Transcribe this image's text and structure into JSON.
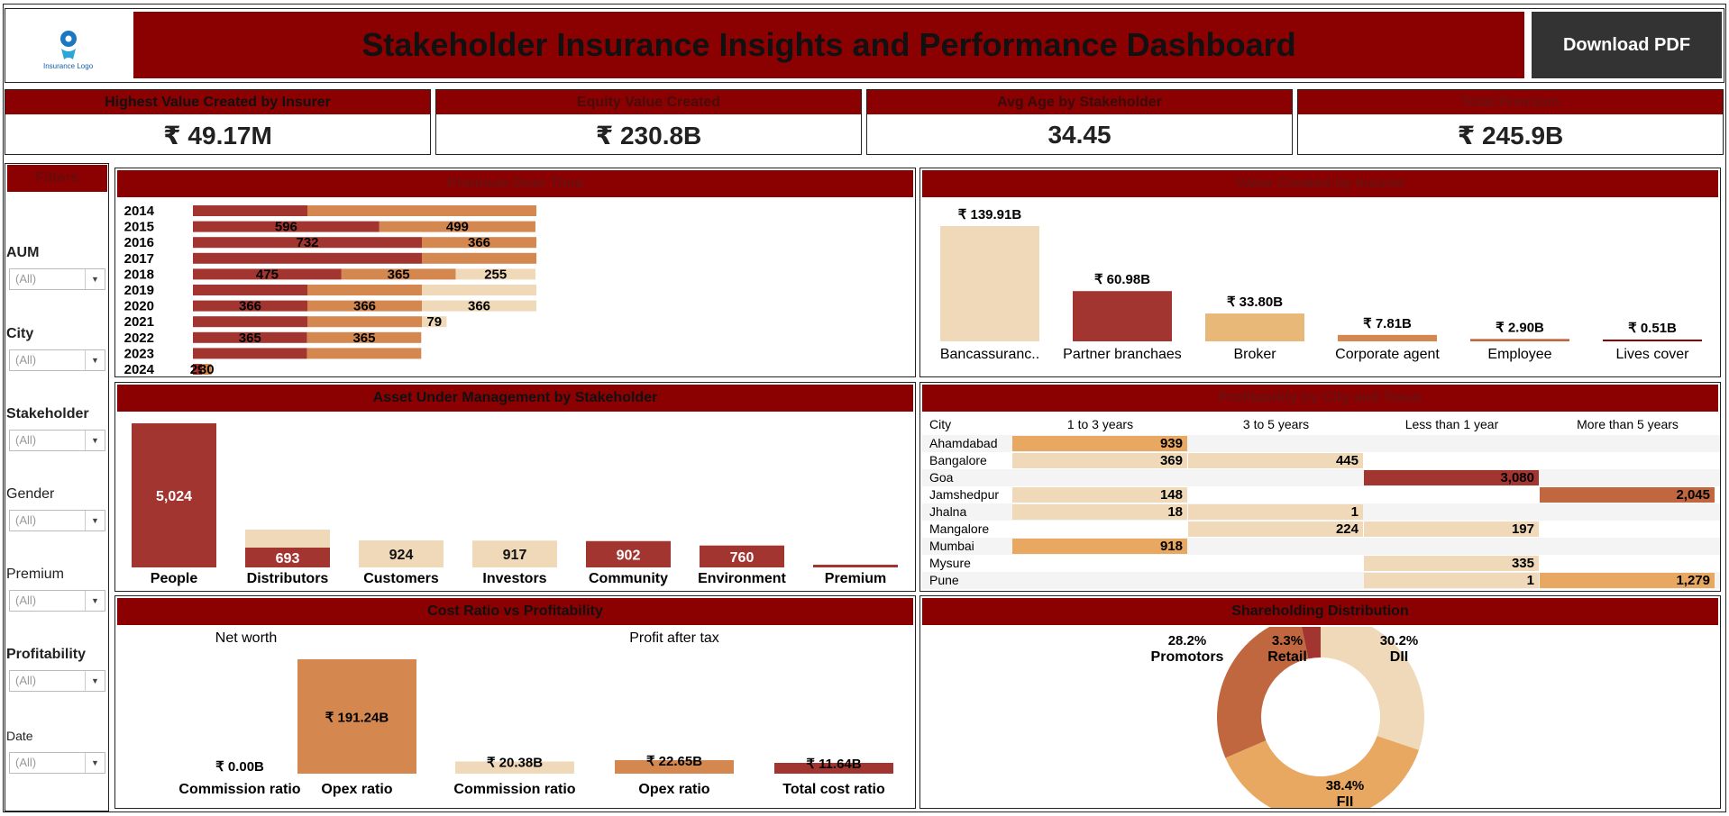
{
  "header": {
    "logo_text": "Insurance Logo",
    "title": "Stakeholder Insurance Insights and Performance Dashboard",
    "download_label": "Download PDF"
  },
  "kpis": [
    {
      "label": "Highest Value Created by Insurer",
      "value": "₹ 49.17M"
    },
    {
      "label": "Equity Value Created",
      "value": "₹ 230.8B"
    },
    {
      "label": "Avg Age by Stakeholder",
      "value": "34.45"
    },
    {
      "label": "Total Premium",
      "value": "₹ 245.9B"
    }
  ],
  "filters": {
    "title": "Filters",
    "items": [
      {
        "label": "AUM",
        "value": "(All)"
      },
      {
        "label": "City",
        "value": "(All)"
      },
      {
        "label": "Stakeholder",
        "value": "(All)"
      },
      {
        "label": "Gender",
        "value": "(All)"
      },
      {
        "label": "Premium",
        "value": "(All)"
      },
      {
        "label": "Profitability",
        "value": "(All)"
      },
      {
        "label": "Date",
        "value": "(All)"
      }
    ]
  },
  "colors": {
    "header_red": "#8b0000",
    "dark_red": "#a23530",
    "orange": "#d4874f",
    "light_orange": "#e8a862",
    "beige": "#efd9b8",
    "terracotta": "#c0673f"
  },
  "chart_data": [
    {
      "id": "premium_over_time",
      "type": "bar",
      "orientation": "horizontal-stacked",
      "title": "Premium Over Time",
      "categories": [
        "2014",
        "2015",
        "2016",
        "2017",
        "2018",
        "2019",
        "2020",
        "2021",
        "2022",
        "2023",
        "2024"
      ],
      "series": [
        {
          "color": "#a23530",
          "values": [
            366,
            596,
            732,
            732,
            475,
            366,
            366,
            366,
            365,
            365,
            29
          ]
        },
        {
          "color": "#d4874f",
          "values": [
            732,
            499,
            366,
            366,
            365,
            366,
            366,
            366,
            365,
            365,
            30
          ]
        },
        {
          "color": "#efd9b8",
          "values": [
            0,
            0,
            0,
            0,
            255,
            366,
            366,
            79,
            0,
            0,
            0
          ]
        }
      ],
      "labels": [
        [
          "",
          "",
          ""
        ],
        [
          "596",
          "499",
          ""
        ],
        [
          "732",
          "366",
          ""
        ],
        [
          "",
          "",
          ""
        ],
        [
          "475",
          "365",
          "255"
        ],
        [
          "",
          "",
          ""
        ],
        [
          "366",
          "366",
          "366"
        ],
        [
          "",
          "",
          "79"
        ],
        [
          "365",
          "365",
          ""
        ],
        [
          "",
          "",
          ""
        ],
        [
          "29",
          "30",
          ""
        ]
      ]
    },
    {
      "id": "value_created_by_insurer",
      "type": "bar",
      "title": "Value Created by Insurer",
      "categories": [
        "Bancassuranc..",
        "Partner branchaes",
        "Broker",
        "Corporate agent",
        "Employee",
        "Lives cover"
      ],
      "values": [
        139.91,
        60.98,
        33.8,
        7.81,
        2.9,
        0.51
      ],
      "value_labels": [
        "₹ 139.91B",
        "₹ 60.98B",
        "₹ 33.80B",
        "₹ 7.81B",
        "₹ 2.90B",
        "₹ 0.51B"
      ],
      "colors": [
        "#efd9b8",
        "#a23530",
        "#e8b878",
        "#d4874f",
        "#c0673f",
        "#8b0000"
      ]
    },
    {
      "id": "aum_by_stakeholder",
      "type": "bar",
      "title": "Asset Under Management by Stakeholder",
      "categories": [
        "People",
        "Distributors",
        "Customers",
        "Investors",
        "Community",
        "Environment",
        "Premium"
      ],
      "values": [
        5024,
        693,
        924,
        917,
        902,
        760,
        0
      ],
      "extra_segment": [
        0,
        600,
        0,
        0,
        0,
        0,
        0
      ],
      "value_labels": [
        "5,024",
        "693",
        "924",
        "917",
        "902",
        "760",
        ""
      ],
      "colors": [
        "#a23530",
        "#a23530",
        "#efd9b8",
        "#efd9b8",
        "#a23530",
        "#a23530",
        "#a23530"
      ]
    },
    {
      "id": "profitability_by_city_tenure",
      "type": "table",
      "title": "Profitability by City and Tenur",
      "columns": [
        "City",
        "1 to 3 years",
        "3 to 5 years",
        "Less than 1 year",
        "More than 5 years"
      ],
      "rows": [
        {
          "city": "Ahamdabad",
          "cells": [
            {
              "v": "939",
              "c": "#e8a862"
            },
            null,
            null,
            null
          ]
        },
        {
          "city": "Bangalore",
          "cells": [
            {
              "v": "369",
              "c": "#efd9b8"
            },
            {
              "v": "445",
              "c": "#efd9b8"
            },
            null,
            null
          ]
        },
        {
          "city": "Goa",
          "cells": [
            null,
            null,
            {
              "v": "3,080",
              "c": "#a23530"
            },
            null
          ]
        },
        {
          "city": "Jamshedpur",
          "cells": [
            {
              "v": "148",
              "c": "#efd9b8"
            },
            null,
            null,
            {
              "v": "2,045",
              "c": "#c0673f"
            }
          ]
        },
        {
          "city": "Jhalna",
          "cells": [
            {
              "v": "18",
              "c": "#efd9b8"
            },
            {
              "v": "1",
              "c": "#efd9b8"
            },
            null,
            null
          ]
        },
        {
          "city": "Mangalore",
          "cells": [
            null,
            {
              "v": "224",
              "c": "#efd9b8"
            },
            {
              "v": "197",
              "c": "#efd9b8"
            },
            null
          ]
        },
        {
          "city": "Mumbai",
          "cells": [
            {
              "v": "918",
              "c": "#e8a862"
            },
            null,
            null,
            null
          ]
        },
        {
          "city": "Mysure",
          "cells": [
            null,
            null,
            {
              "v": "335",
              "c": "#efd9b8"
            },
            null
          ]
        },
        {
          "city": "Pune",
          "cells": [
            null,
            null,
            {
              "v": "1",
              "c": "#efd9b8"
            },
            {
              "v": "1,279",
              "c": "#e8a862"
            }
          ]
        }
      ]
    },
    {
      "id": "cost_ratio_vs_profitability",
      "type": "bar",
      "title": "Cost Ratio vs Profitability",
      "groups": [
        {
          "name": "Net worth",
          "categories": [
            "Commission ratio",
            "Opex ratio"
          ],
          "values": [
            0.0,
            191.24
          ],
          "value_labels": [
            "₹ 0.00B",
            "₹ 191.24B"
          ],
          "colors": [
            "#a23530",
            "#d4874f"
          ]
        },
        {
          "name": "Profit after tax",
          "categories": [
            "Commission ratio",
            "Opex ratio",
            "Total cost ratio"
          ],
          "values": [
            20.38,
            22.65,
            11.64
          ],
          "value_labels": [
            "₹ 20.38B",
            "₹ 22.65B",
            "₹ 11.64B"
          ],
          "colors": [
            "#efd9b8",
            "#d4874f",
            "#a23530"
          ]
        }
      ]
    },
    {
      "id": "shareholding_distribution",
      "type": "pie",
      "title": "Shareholding Distribution",
      "slices": [
        {
          "name": "DII",
          "value": 30.2,
          "label": "30.2%",
          "color": "#efd9b8"
        },
        {
          "name": "FII",
          "value": 38.4,
          "label": "38.4%",
          "color": "#e8a862"
        },
        {
          "name": "Promotors",
          "value": 28.2,
          "label": "28.2%",
          "color": "#c0673f"
        },
        {
          "name": "Retail",
          "value": 3.3,
          "label": "3.3%",
          "color": "#a23530"
        }
      ]
    }
  ]
}
